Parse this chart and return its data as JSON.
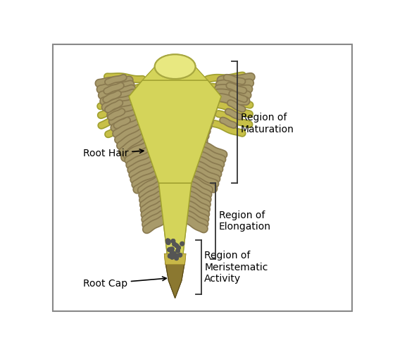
{
  "bg_color": "#ffffff",
  "border_color": "#888888",
  "root_body_color": "#d4d45a",
  "root_hair_color": "#a89a6a",
  "root_hair_outline": "#8a7a50",
  "lateral_root_color": "#c8c048",
  "lateral_root_outline": "#a0a030",
  "root_cap_dark": "#8b7830",
  "root_cap_light": "#c8b848",
  "meristem_dots_color": "#555555",
  "stem_oval_fill": "#e8e880",
  "stem_oval_edge": "#a8a840",
  "label_root_hair": "Root Hair",
  "label_root_cap": "Root Cap",
  "label_maturation": "Region of\nMaturation",
  "label_elongation": "Region of\nElongation",
  "label_meristematic": "Region of\nMeristematic\nActivity",
  "arrow_color": "#000000",
  "text_color": "#000000",
  "fontsize_labels": 10,
  "fig_width": 5.61,
  "fig_height": 5.0,
  "dpi": 100
}
